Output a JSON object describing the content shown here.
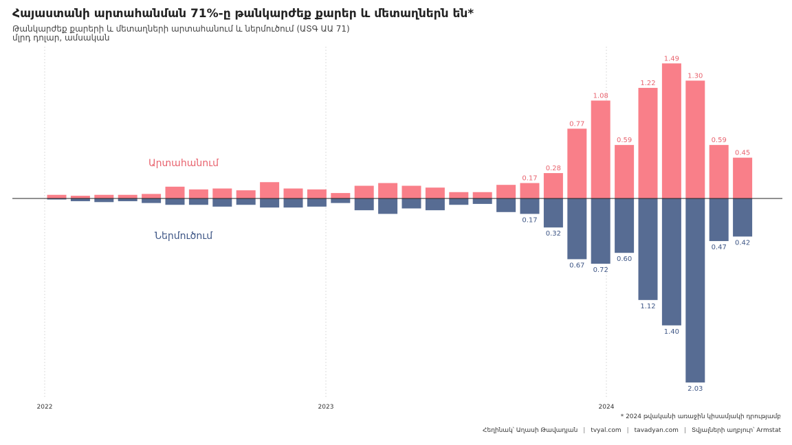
{
  "header": {
    "title": "Հայաստանի արտահանման 71%-ը թանկարժեք քարեր և մետաղներն են*",
    "subtitle": "Թանկարժեք քարերի և մետաղների արտահանում և ներմուծում (ԱՏԳ ԱԱ 71)",
    "unit": "մլրդ դոլար, ամսական"
  },
  "footer": {
    "footnote": "* 2024 թվականի առաջին կիսամյակի դրությամբ",
    "author": "Հեղինակ՝ Աղասի Թավադյան",
    "site1": "tvyal.com",
    "site2": "tavadyan.com",
    "source": "Տվյալների աղբյուր՝ Armstat",
    "separator": "|"
  },
  "colors": {
    "export": "#f97f89",
    "import": "#576c93",
    "export_text": "#e8636e",
    "import_text": "#3d5585",
    "baseline": "#222222",
    "grid": "#d0d0d0"
  },
  "chart_data": {
    "type": "bar",
    "grid": "vertical dotted lines at year starts",
    "x_ticks": [
      "2022",
      "2023",
      "2024"
    ],
    "labels": {
      "export_series": "Արտահանում",
      "import_series": "Ներմուծում"
    },
    "ylim": [
      -2.2,
      1.6
    ],
    "categories": [
      "2022-01",
      "2022-02",
      "2022-03",
      "2022-04",
      "2022-05",
      "2022-06",
      "2022-07",
      "2022-08",
      "2022-09",
      "2022-10",
      "2022-11",
      "2022-12",
      "2023-01",
      "2023-02",
      "2023-03",
      "2023-04",
      "2023-05",
      "2023-06",
      "2023-07",
      "2023-08",
      "2023-09",
      "2023-10",
      "2023-11",
      "2023-12",
      "2024-01",
      "2024-02",
      "2024-03",
      "2024-04",
      "2024-05",
      "2024-06"
    ],
    "series": [
      {
        "name": "Արտահանում",
        "values": [
          0.04,
          0.03,
          0.04,
          0.04,
          0.05,
          0.13,
          0.1,
          0.11,
          0.09,
          0.18,
          0.11,
          0.1,
          0.06,
          0.14,
          0.17,
          0.14,
          0.12,
          0.07,
          0.07,
          0.15,
          0.17,
          0.28,
          0.77,
          1.08,
          0.59,
          1.22,
          1.49,
          1.3,
          0.59,
          0.45
        ],
        "data_labels": [
          null,
          null,
          null,
          null,
          null,
          null,
          null,
          null,
          null,
          null,
          null,
          null,
          null,
          null,
          null,
          null,
          null,
          null,
          null,
          null,
          "0.17",
          "0.28",
          "0.77",
          "1.08",
          "0.59",
          "1.22",
          "1.49",
          "1.30",
          "0.59",
          "0.45"
        ]
      },
      {
        "name": "Ներմուծում",
        "values": [
          -0.01,
          -0.03,
          -0.04,
          -0.03,
          -0.05,
          -0.07,
          -0.07,
          -0.09,
          -0.07,
          -0.1,
          -0.1,
          -0.09,
          -0.05,
          -0.13,
          -0.17,
          -0.11,
          -0.13,
          -0.07,
          -0.06,
          -0.15,
          -0.17,
          -0.32,
          -0.67,
          -0.72,
          -0.6,
          -1.12,
          -1.4,
          -2.03,
          -0.47,
          -0.42
        ],
        "data_labels": [
          null,
          null,
          null,
          null,
          null,
          null,
          null,
          null,
          null,
          null,
          null,
          null,
          null,
          null,
          null,
          null,
          null,
          null,
          null,
          null,
          "0.17",
          "0.32",
          "0.67",
          "0.72",
          "0.60",
          "1.12",
          "1.40",
          "2.03",
          "0.47",
          "0.42"
        ]
      }
    ]
  }
}
